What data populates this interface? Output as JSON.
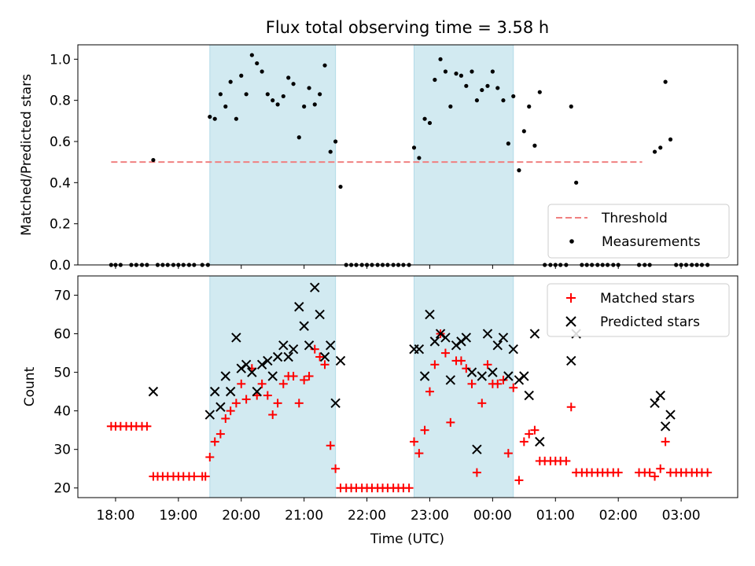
{
  "chart_data": [
    {
      "type": "scatter",
      "title": "Flux total observing time = 3.58 h",
      "ylabel": "Matched/Predicted stars",
      "xlim_hours": [
        17.4,
        27.9
      ],
      "ylim": [
        0,
        1.07
      ],
      "y_ticks": [
        "0.0",
        "0.2",
        "0.4",
        "0.6",
        "0.8",
        "1.0"
      ],
      "y_tick_values": [
        0,
        0.2,
        0.4,
        0.6,
        0.8,
        1.0
      ],
      "shaded_intervals_hours": [
        [
          19.5,
          21.5
        ],
        [
          22.75,
          24.33
        ]
      ],
      "shade_color": "#add8e6",
      "legend_position": "lower right",
      "legend": [
        {
          "label": "Threshold",
          "kind": "dashed-line",
          "color": "#f08080"
        },
        {
          "label": "Measurements",
          "kind": "dot",
          "color": "#000000"
        }
      ],
      "threshold": {
        "y": 0.5,
        "x_range_hours": [
          17.93,
          26.38
        ],
        "color": "#f08080"
      },
      "measurements": [
        [
          17.93,
          0
        ],
        [
          18.0,
          0
        ],
        [
          18.08,
          0
        ],
        [
          18.25,
          0
        ],
        [
          18.33,
          0
        ],
        [
          18.42,
          0
        ],
        [
          18.5,
          0
        ],
        [
          18.6,
          0.51
        ],
        [
          18.67,
          0
        ],
        [
          18.75,
          0
        ],
        [
          18.83,
          0
        ],
        [
          18.92,
          0
        ],
        [
          19.0,
          0
        ],
        [
          19.08,
          0
        ],
        [
          19.17,
          0
        ],
        [
          19.25,
          0
        ],
        [
          19.38,
          0
        ],
        [
          19.47,
          0
        ],
        [
          19.5,
          0.72
        ],
        [
          19.58,
          0.71
        ],
        [
          19.67,
          0.83
        ],
        [
          19.75,
          0.77
        ],
        [
          19.83,
          0.89
        ],
        [
          19.92,
          0.71
        ],
        [
          20.0,
          0.92
        ],
        [
          20.08,
          0.83
        ],
        [
          20.17,
          1.02
        ],
        [
          20.25,
          0.98
        ],
        [
          20.33,
          0.94
        ],
        [
          20.42,
          0.83
        ],
        [
          20.5,
          0.8
        ],
        [
          20.58,
          0.78
        ],
        [
          20.67,
          0.82
        ],
        [
          20.75,
          0.91
        ],
        [
          20.83,
          0.88
        ],
        [
          20.92,
          0.62
        ],
        [
          21.0,
          0.77
        ],
        [
          21.08,
          0.86
        ],
        [
          21.17,
          0.78
        ],
        [
          21.25,
          0.83
        ],
        [
          21.33,
          0.97
        ],
        [
          21.42,
          0.55
        ],
        [
          21.5,
          0.6
        ],
        [
          21.58,
          0.38
        ],
        [
          21.67,
          0
        ],
        [
          21.75,
          0
        ],
        [
          21.83,
          0
        ],
        [
          21.92,
          0
        ],
        [
          22.0,
          0
        ],
        [
          22.08,
          0
        ],
        [
          22.17,
          0
        ],
        [
          22.25,
          0
        ],
        [
          22.33,
          0
        ],
        [
          22.42,
          0
        ],
        [
          22.5,
          0
        ],
        [
          22.58,
          0
        ],
        [
          22.67,
          0
        ],
        [
          22.75,
          0.57
        ],
        [
          22.83,
          0.52
        ],
        [
          22.92,
          0.71
        ],
        [
          23.0,
          0.69
        ],
        [
          23.08,
          0.9
        ],
        [
          23.17,
          1.0
        ],
        [
          23.25,
          0.94
        ],
        [
          23.33,
          0.77
        ],
        [
          23.42,
          0.93
        ],
        [
          23.5,
          0.92
        ],
        [
          23.58,
          0.87
        ],
        [
          23.67,
          0.94
        ],
        [
          23.75,
          0.8
        ],
        [
          23.83,
          0.85
        ],
        [
          23.92,
          0.87
        ],
        [
          24.0,
          0.94
        ],
        [
          24.08,
          0.86
        ],
        [
          24.17,
          0.8
        ],
        [
          24.25,
          0.59
        ],
        [
          24.33,
          0.82
        ],
        [
          24.42,
          0.46
        ],
        [
          24.5,
          0.65
        ],
        [
          24.58,
          0.77
        ],
        [
          24.67,
          0.58
        ],
        [
          24.75,
          0.84
        ],
        [
          24.83,
          0
        ],
        [
          24.92,
          0
        ],
        [
          25.0,
          0
        ],
        [
          25.08,
          0
        ],
        [
          25.17,
          0
        ],
        [
          25.25,
          0.77
        ],
        [
          25.33,
          0.4
        ],
        [
          25.42,
          0
        ],
        [
          25.5,
          0
        ],
        [
          25.58,
          0
        ],
        [
          25.67,
          0
        ],
        [
          25.75,
          0
        ],
        [
          25.83,
          0
        ],
        [
          25.92,
          0
        ],
        [
          26.0,
          0
        ],
        [
          26.33,
          0
        ],
        [
          26.42,
          0
        ],
        [
          26.5,
          0
        ],
        [
          26.58,
          0.55
        ],
        [
          26.67,
          0.57
        ],
        [
          26.75,
          0.89
        ],
        [
          26.83,
          0.61
        ],
        [
          26.92,
          0
        ],
        [
          27.0,
          0
        ],
        [
          27.08,
          0
        ],
        [
          27.17,
          0
        ],
        [
          27.25,
          0
        ],
        [
          27.33,
          0
        ],
        [
          27.42,
          0
        ]
      ]
    },
    {
      "type": "scatter",
      "ylabel": "Count",
      "xlabel": "Time (UTC)",
      "xlim_hours": [
        17.4,
        27.9
      ],
      "ylim": [
        17.5,
        75
      ],
      "y_ticks": [
        "20",
        "30",
        "40",
        "50",
        "60",
        "70"
      ],
      "y_tick_values": [
        20,
        30,
        40,
        50,
        60,
        70
      ],
      "x_ticks": [
        "18:00",
        "19:00",
        "20:00",
        "21:00",
        "22:00",
        "23:00",
        "00:00",
        "01:00",
        "02:00",
        "03:00"
      ],
      "x_tick_values": [
        18,
        19,
        20,
        21,
        22,
        23,
        24,
        25,
        26,
        27
      ],
      "shaded_intervals_hours": [
        [
          19.5,
          21.5
        ],
        [
          22.75,
          24.33
        ]
      ],
      "shade_color": "#add8e6",
      "legend_position": "upper right",
      "series": [
        {
          "name": "Matched stars",
          "marker": "+",
          "color": "#ff0000",
          "points": [
            [
              17.93,
              36
            ],
            [
              18.0,
              36
            ],
            [
              18.08,
              36
            ],
            [
              18.17,
              36
            ],
            [
              18.25,
              36
            ],
            [
              18.33,
              36
            ],
            [
              18.42,
              36
            ],
            [
              18.5,
              36
            ],
            [
              18.6,
              23
            ],
            [
              18.67,
              23
            ],
            [
              18.75,
              23
            ],
            [
              18.83,
              23
            ],
            [
              18.92,
              23
            ],
            [
              19.0,
              23
            ],
            [
              19.08,
              23
            ],
            [
              19.17,
              23
            ],
            [
              19.25,
              23
            ],
            [
              19.38,
              23
            ],
            [
              19.43,
              23
            ],
            [
              19.5,
              28
            ],
            [
              19.58,
              32
            ],
            [
              19.67,
              34
            ],
            [
              19.75,
              38
            ],
            [
              19.83,
              40
            ],
            [
              19.92,
              42
            ],
            [
              20.0,
              47
            ],
            [
              20.08,
              43
            ],
            [
              20.17,
              51
            ],
            [
              20.25,
              44
            ],
            [
              20.33,
              47
            ],
            [
              20.42,
              44
            ],
            [
              20.5,
              39
            ],
            [
              20.58,
              42
            ],
            [
              20.67,
              47
            ],
            [
              20.75,
              49
            ],
            [
              20.83,
              49
            ],
            [
              20.92,
              42
            ],
            [
              21.0,
              48
            ],
            [
              21.08,
              49
            ],
            [
              21.17,
              56
            ],
            [
              21.25,
              54
            ],
            [
              21.33,
              52
            ],
            [
              21.42,
              31
            ],
            [
              21.5,
              25
            ],
            [
              21.58,
              20
            ],
            [
              21.67,
              20
            ],
            [
              21.75,
              20
            ],
            [
              21.83,
              20
            ],
            [
              21.92,
              20
            ],
            [
              22.0,
              20
            ],
            [
              22.08,
              20
            ],
            [
              22.17,
              20
            ],
            [
              22.25,
              20
            ],
            [
              22.33,
              20
            ],
            [
              22.42,
              20
            ],
            [
              22.5,
              20
            ],
            [
              22.58,
              20
            ],
            [
              22.67,
              20
            ],
            [
              22.75,
              32
            ],
            [
              22.83,
              29
            ],
            [
              22.92,
              35
            ],
            [
              23.0,
              45
            ],
            [
              23.08,
              52
            ],
            [
              23.17,
              60
            ],
            [
              23.25,
              55
            ],
            [
              23.33,
              37
            ],
            [
              23.42,
              53
            ],
            [
              23.5,
              53
            ],
            [
              23.58,
              51
            ],
            [
              23.67,
              47
            ],
            [
              23.75,
              24
            ],
            [
              23.83,
              42
            ],
            [
              23.92,
              52
            ],
            [
              24.0,
              47
            ],
            [
              24.08,
              47
            ],
            [
              24.17,
              48
            ],
            [
              24.25,
              29
            ],
            [
              24.33,
              46
            ],
            [
              24.42,
              22
            ],
            [
              24.5,
              32
            ],
            [
              24.58,
              34
            ],
            [
              24.67,
              35
            ],
            [
              24.75,
              27
            ],
            [
              24.83,
              27
            ],
            [
              24.92,
              27
            ],
            [
              25.0,
              27
            ],
            [
              25.08,
              27
            ],
            [
              25.17,
              27
            ],
            [
              25.25,
              41
            ],
            [
              25.33,
              24
            ],
            [
              25.42,
              24
            ],
            [
              25.5,
              24
            ],
            [
              25.58,
              24
            ],
            [
              25.67,
              24
            ],
            [
              25.75,
              24
            ],
            [
              25.83,
              24
            ],
            [
              25.92,
              24
            ],
            [
              26.0,
              24
            ],
            [
              26.33,
              24
            ],
            [
              26.42,
              24
            ],
            [
              26.5,
              24
            ],
            [
              26.58,
              23
            ],
            [
              26.67,
              25
            ],
            [
              26.75,
              32
            ],
            [
              26.83,
              24
            ],
            [
              26.92,
              24
            ],
            [
              27.0,
              24
            ],
            [
              27.08,
              24
            ],
            [
              27.17,
              24
            ],
            [
              27.25,
              24
            ],
            [
              27.33,
              24
            ],
            [
              27.42,
              24
            ]
          ]
        },
        {
          "name": "Predicted stars",
          "marker": "x",
          "color": "#000000",
          "points": [
            [
              18.6,
              45
            ],
            [
              19.5,
              39
            ],
            [
              19.58,
              45
            ],
            [
              19.67,
              41
            ],
            [
              19.75,
              49
            ],
            [
              19.83,
              45
            ],
            [
              19.92,
              59
            ],
            [
              20.0,
              51
            ],
            [
              20.08,
              52
            ],
            [
              20.17,
              50
            ],
            [
              20.25,
              45
            ],
            [
              20.33,
              52
            ],
            [
              20.42,
              53
            ],
            [
              20.5,
              49
            ],
            [
              20.58,
              54
            ],
            [
              20.67,
              57
            ],
            [
              20.75,
              54
            ],
            [
              20.83,
              56
            ],
            [
              20.92,
              67
            ],
            [
              21.0,
              62
            ],
            [
              21.08,
              57
            ],
            [
              21.17,
              72
            ],
            [
              21.25,
              65
            ],
            [
              21.33,
              54
            ],
            [
              21.42,
              57
            ],
            [
              21.5,
              42
            ],
            [
              21.58,
              53
            ],
            [
              22.75,
              56
            ],
            [
              22.83,
              56
            ],
            [
              22.92,
              49
            ],
            [
              23.0,
              65
            ],
            [
              23.08,
              58
            ],
            [
              23.17,
              60
            ],
            [
              23.25,
              59
            ],
            [
              23.33,
              48
            ],
            [
              23.42,
              57
            ],
            [
              23.5,
              58
            ],
            [
              23.58,
              59
            ],
            [
              23.67,
              50
            ],
            [
              23.75,
              30
            ],
            [
              23.83,
              49
            ],
            [
              23.92,
              60
            ],
            [
              24.0,
              50
            ],
            [
              24.08,
              57
            ],
            [
              24.17,
              59
            ],
            [
              24.25,
              49
            ],
            [
              24.33,
              56
            ],
            [
              24.42,
              48
            ],
            [
              24.5,
              49
            ],
            [
              24.58,
              44
            ],
            [
              24.67,
              60
            ],
            [
              24.75,
              32
            ],
            [
              25.25,
              53
            ],
            [
              25.33,
              60
            ],
            [
              26.58,
              42
            ],
            [
              26.67,
              44
            ],
            [
              26.75,
              36
            ],
            [
              26.83,
              39
            ]
          ]
        }
      ]
    }
  ]
}
